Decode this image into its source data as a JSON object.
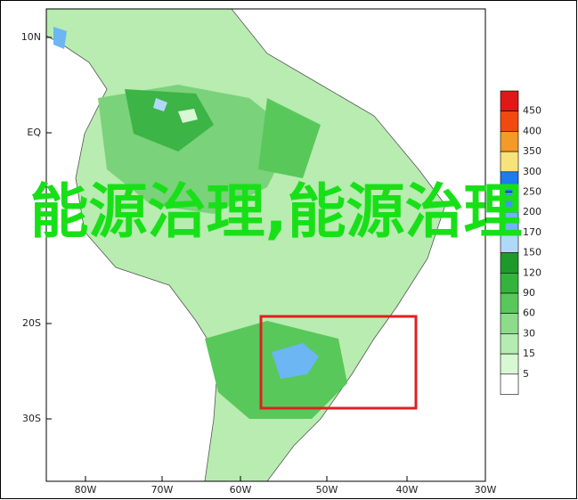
{
  "map": {
    "lat_labels": [
      "10N",
      "EQ",
      "20S",
      "30S"
    ],
    "lon_labels": [
      "80W",
      "70W",
      "60W",
      "50W",
      "40W",
      "30W"
    ],
    "colorbar": {
      "labels": [
        450,
        400,
        350,
        300,
        250,
        200,
        170,
        150,
        120,
        90,
        60,
        30,
        15,
        5
      ],
      "colors": [
        "#e01818",
        "#f04a10",
        "#f49a28",
        "#f8e27a",
        "#1c7cf0",
        "#3c9af2",
        "#6cb6f4",
        "#b0d8f8",
        "#1e9a2a",
        "#34b43c",
        "#58c85a",
        "#8cdc8a",
        "#b4ecb2",
        "#d8f8d4",
        "#ffffff"
      ]
    },
    "overlay_text": "能源治理,能源治理"
  }
}
